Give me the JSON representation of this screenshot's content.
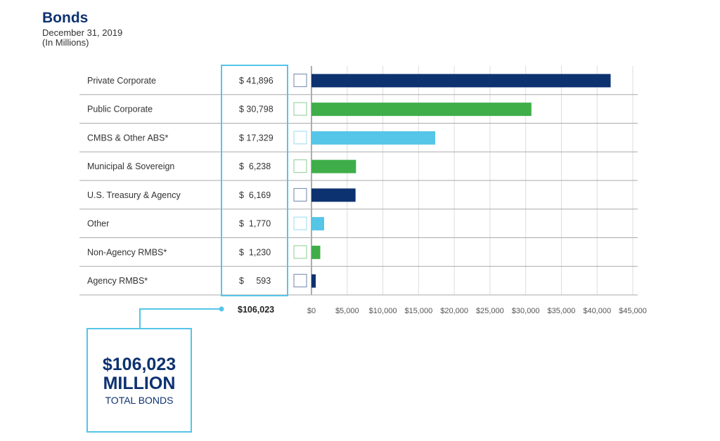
{
  "chart_data": {
    "type": "bar",
    "orientation": "horizontal",
    "title": "Bonds",
    "subtitle": "December 31, 2019",
    "unit_note": "(In Millions)",
    "categories": [
      "Private Corporate",
      "Public Corporate",
      "CMBS & Other ABS*",
      "Municipal & Sovereign",
      "U.S. Treasury & Agency",
      "Other",
      "Non-Agency RMBS*",
      "Agency RMBS*"
    ],
    "values": [
      41896,
      30798,
      17329,
      6238,
      6169,
      1770,
      1230,
      593
    ],
    "value_labels": [
      "$ 41,896",
      "$ 30,798",
      "$ 17,329",
      "$  6,238",
      "$  6,169",
      "$  1,770",
      "$  1,230",
      "$     593"
    ],
    "bar_colors": [
      "#0d3270",
      "#3fae49",
      "#55c5e8",
      "#3fae49",
      "#0d3270",
      "#55c5e8",
      "#3fae49",
      "#0d3270"
    ],
    "xlim": [
      0,
      45000
    ],
    "xticks": [
      0,
      5000,
      10000,
      15000,
      20000,
      25000,
      30000,
      35000,
      40000,
      45000
    ],
    "xtick_labels": [
      "$0",
      "$5,000",
      "$10,000",
      "$15,000",
      "$20,000",
      "$25,000",
      "$30,000",
      "$35,000",
      "$40,000",
      "$45,000"
    ],
    "grid": true,
    "total_label": "$106,023"
  },
  "callout": {
    "amount": "$106,023",
    "unit": "MILLION",
    "caption": "TOTAL BONDS",
    "color": "#55c5e8"
  }
}
